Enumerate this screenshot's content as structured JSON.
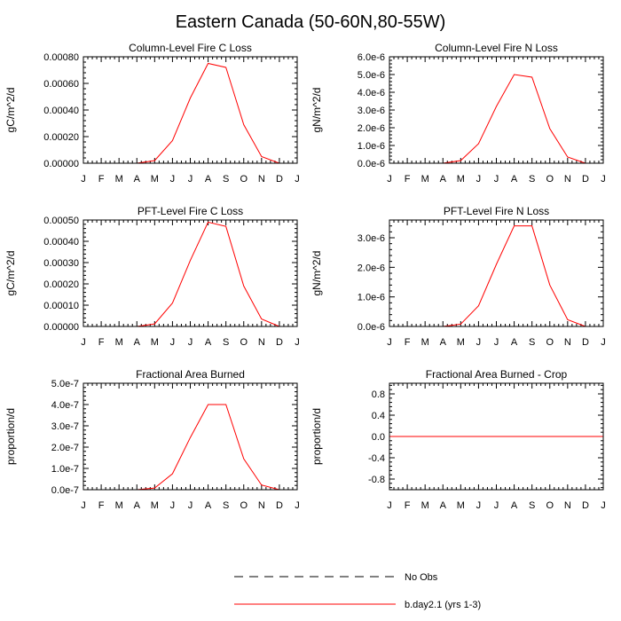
{
  "figure": {
    "title": "Eastern Canada (50-60N,80-55W)",
    "line_color": "#ff0000",
    "axis_color": "#000000",
    "months": [
      "J",
      "F",
      "M",
      "A",
      "M",
      "J",
      "J",
      "A",
      "S",
      "O",
      "N",
      "D",
      "J"
    ]
  },
  "legend": {
    "items": [
      {
        "label": "No Obs",
        "style": "dashed",
        "color": "#000000"
      },
      {
        "label": "b.day2.1 (yrs 1-3)",
        "style": "solid",
        "color": "#ff0000"
      }
    ]
  },
  "chart_data": [
    {
      "type": "line",
      "title": "Column-Level Fire C Loss",
      "xlabel": "",
      "ylabel": "gC/m^2/d",
      "ylim": [
        0,
        0.0008
      ],
      "yticks": [
        0,
        0.0002,
        0.0004,
        0.0006,
        0.0008
      ],
      "ytick_labels": [
        "0.00000",
        "0.00020",
        "0.00040",
        "0.00060",
        "0.00080"
      ],
      "series": [
        {
          "name": "b.day2.1 (yrs 1-3)",
          "values": [
            0,
            0,
            0,
            0,
            2e-05,
            0.00017,
            0.00049,
            0.00075,
            0.00072,
            0.00029,
            5e-05,
            0,
            0
          ]
        }
      ]
    },
    {
      "type": "line",
      "title": "Column-Level Fire N Loss",
      "xlabel": "",
      "ylabel": "gN/m^2/d",
      "ylim": [
        0,
        6e-06
      ],
      "yticks": [
        0,
        1e-06,
        2e-06,
        3e-06,
        4e-06,
        5e-06,
        6e-06
      ],
      "ytick_labels": [
        "0.0e-6",
        "1.0e-6",
        "2.0e-6",
        "3.0e-6",
        "4.0e-6",
        "5.0e-6",
        "6.0e-6"
      ],
      "series": [
        {
          "name": "b.day2.1 (yrs 1-3)",
          "values": [
            0,
            0,
            0,
            0,
            1.5e-07,
            1.1e-06,
            3.2e-06,
            5e-06,
            4.85e-06,
            1.95e-06,
            3.5e-07,
            0,
            0
          ]
        }
      ]
    },
    {
      "type": "line",
      "title": "PFT-Level Fire C Loss",
      "xlabel": "",
      "ylabel": "gC/m^2/d",
      "ylim": [
        0,
        0.0005
      ],
      "yticks": [
        0,
        0.0001,
        0.0002,
        0.0003,
        0.0004,
        0.0005
      ],
      "ytick_labels": [
        "0.00000",
        "0.00010",
        "0.00020",
        "0.00030",
        "0.00040",
        "0.00050"
      ],
      "series": [
        {
          "name": "b.day2.1 (yrs 1-3)",
          "values": [
            0,
            0,
            0,
            0,
            1.2e-05,
            0.00011,
            0.00031,
            0.00049,
            0.00047,
            0.00019,
            3.5e-05,
            0,
            0
          ]
        }
      ]
    },
    {
      "type": "line",
      "title": "PFT-Level Fire N Loss",
      "xlabel": "",
      "ylabel": "gN/m^2/d",
      "ylim": [
        0,
        3.6e-06
      ],
      "yticks": [
        0,
        1e-06,
        2e-06,
        3e-06
      ],
      "ytick_labels": [
        "0.0e-6",
        "1.0e-6",
        "2.0e-6",
        "3.0e-6"
      ],
      "series": [
        {
          "name": "b.day2.1 (yrs 1-3)",
          "values": [
            0,
            0,
            0,
            0,
            8e-08,
            7e-07,
            2.1e-06,
            3.4e-06,
            3.4e-06,
            1.4e-06,
            2.3e-07,
            0,
            0
          ]
        }
      ]
    },
    {
      "type": "line",
      "title": "Fractional Area Burned",
      "xlabel": "",
      "ylabel": "proportion/d",
      "ylim": [
        0,
        5e-07
      ],
      "yticks": [
        0,
        1e-07,
        2e-07,
        3e-07,
        4e-07,
        5e-07
      ],
      "ytick_labels": [
        "0.0e-7",
        "1.0e-7",
        "2.0e-7",
        "3.0e-7",
        "4.0e-7",
        "5.0e-7"
      ],
      "series": [
        {
          "name": "b.day2.1 (yrs 1-3)",
          "values": [
            0,
            0,
            0,
            0,
            8e-09,
            7.5e-08,
            2.45e-07,
            4e-07,
            4e-07,
            1.45e-07,
            2.2e-08,
            0,
            0
          ]
        }
      ]
    },
    {
      "type": "line",
      "title": "Fractional Area Burned - Crop",
      "xlabel": "",
      "ylabel": "proportion/d",
      "ylim": [
        -1,
        1
      ],
      "yticks": [
        -0.8,
        -0.4,
        0,
        0.4,
        0.8
      ],
      "ytick_labels": [
        "-0.8",
        "-0.4",
        "0.0",
        "0.4",
        "0.8"
      ],
      "series": [
        {
          "name": "b.day2.1 (yrs 1-3)",
          "values": [
            0,
            0,
            0,
            0,
            0,
            0,
            0,
            0,
            0,
            0,
            0,
            0,
            0
          ]
        }
      ]
    }
  ]
}
